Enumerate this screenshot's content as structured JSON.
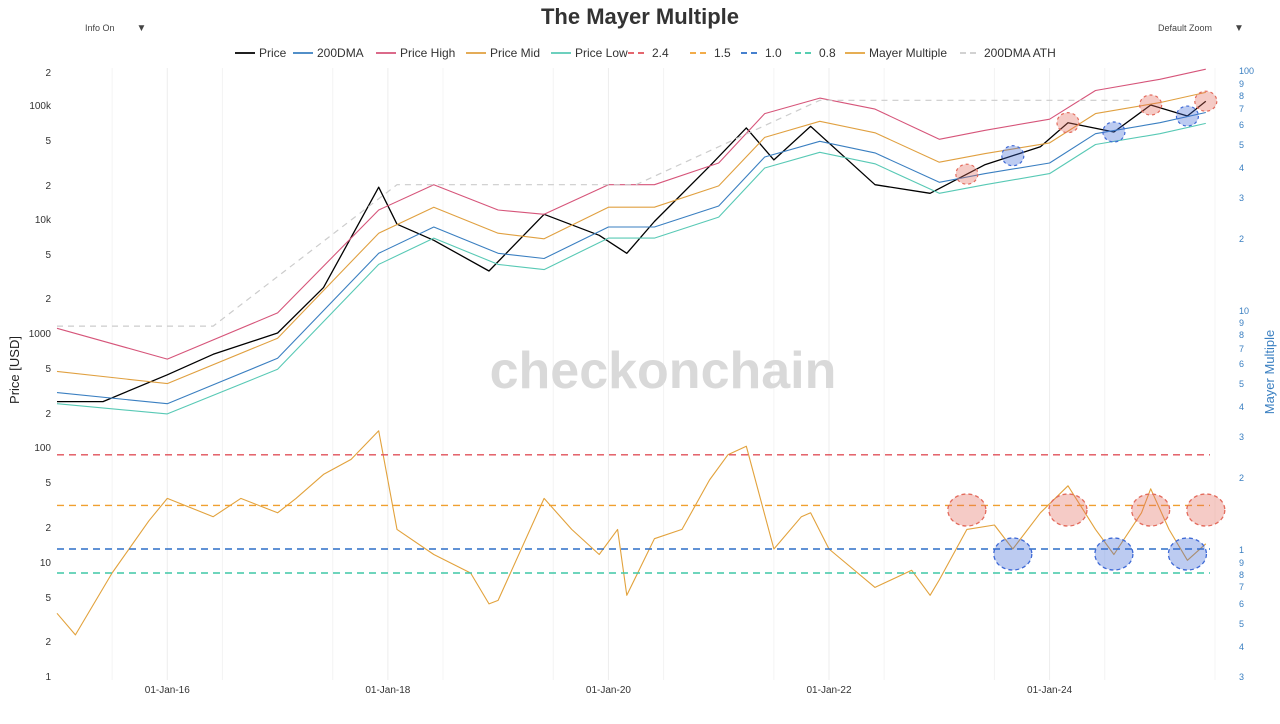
{
  "title": "The Mayer Multiple",
  "controls": {
    "info_label": "Info On",
    "info_caret": "▼",
    "zoom_label": "Default Zoom",
    "zoom_caret": "▼"
  },
  "watermark": "checkonchain",
  "chart_data": {
    "type": "line",
    "title": "The Mayer Multiple",
    "xlabel": "",
    "ylabel_left": "Price [USD]",
    "ylabel_right": "Mayer Multiple",
    "y_scale": "log",
    "x_ticks": [
      "01-Jan-16",
      "01-Jan-18",
      "01-Jan-20",
      "01-Jan-22",
      "01-Jan-24"
    ],
    "left_ticks_top": [
      "2",
      "100k",
      "5",
      "2",
      "10k",
      "5",
      "2",
      "1000",
      "5",
      "2"
    ],
    "left_ticks_bottom": [
      "100",
      "5",
      "2",
      "10",
      "5",
      "2",
      "1"
    ],
    "right_ticks_top": [
      "100",
      "9",
      "8",
      "7",
      "6",
      "5",
      "4",
      "3",
      "2"
    ],
    "right_ticks_bottom": [
      "10",
      "9",
      "8",
      "7",
      "6",
      "5",
      "4",
      "3",
      "2",
      "1",
      "9",
      "8",
      "7",
      "6",
      "5",
      "4",
      "3"
    ],
    "legend": [
      {
        "name": "Price",
        "color": "#000000",
        "dash": "solid"
      },
      {
        "name": "200DMA",
        "color": "#3a7fc1",
        "dash": "solid"
      },
      {
        "name": "Price High",
        "color": "#d6557a",
        "dash": "solid"
      },
      {
        "name": "Price Mid",
        "color": "#e0a040",
        "dash": "solid"
      },
      {
        "name": "Price Low",
        "color": "#58c9b5",
        "dash": "solid"
      },
      {
        "name": "2.4",
        "color": "#e0505a",
        "dash": "dash"
      },
      {
        "name": "1.5",
        "color": "#f0a030",
        "dash": "dash"
      },
      {
        "name": "1.0",
        "color": "#2d6fc7",
        "dash": "dash"
      },
      {
        "name": "0.8",
        "color": "#3fc7a6",
        "dash": "dash"
      },
      {
        "name": "Mayer Multiple",
        "color": "#e2a23c",
        "dash": "solid"
      },
      {
        "name": "200DMA ATH",
        "color": "#cccccc",
        "dash": "dash"
      }
    ],
    "series": [
      {
        "name": "Price",
        "unit": "USD",
        "x": [
          "2015-01",
          "2015-06",
          "2016-01",
          "2016-06",
          "2017-01",
          "2017-06",
          "2017-12",
          "2018-02",
          "2018-06",
          "2018-12",
          "2019-06",
          "2019-12",
          "2020-03",
          "2020-06",
          "2020-12",
          "2021-04",
          "2021-07",
          "2021-11",
          "2022-06",
          "2022-12",
          "2023-06",
          "2023-12",
          "2024-03",
          "2024-08",
          "2024-12",
          "2025-04",
          "2025-06"
        ],
        "values": [
          250,
          250,
          430,
          650,
          1000,
          2500,
          19000,
          9000,
          6500,
          3500,
          11000,
          7200,
          5000,
          9500,
          29000,
          63000,
          33000,
          65000,
          20000,
          16800,
          30000,
          43000,
          70000,
          58000,
          100000,
          80000,
          108000
        ]
      },
      {
        "name": "200DMA",
        "unit": "USD",
        "x": [
          "2015-01",
          "2016-01",
          "2017-01",
          "2017-12",
          "2018-06",
          "2019-01",
          "2019-06",
          "2020-01",
          "2020-06",
          "2021-01",
          "2021-06",
          "2021-12",
          "2022-06",
          "2023-01",
          "2023-06",
          "2024-01",
          "2024-06",
          "2025-01",
          "2025-06"
        ],
        "values": [
          300,
          240,
          600,
          5000,
          8500,
          5000,
          4500,
          8500,
          8500,
          13000,
          35000,
          48000,
          38000,
          21000,
          25000,
          31000,
          56000,
          70000,
          86000
        ]
      },
      {
        "name": "Price High",
        "unit": "USD",
        "x": [
          "2015-01",
          "2016-01",
          "2017-01",
          "2017-12",
          "2018-06",
          "2019-01",
          "2019-06",
          "2020-01",
          "2020-06",
          "2021-01",
          "2021-06",
          "2021-12",
          "2022-06",
          "2023-01",
          "2023-06",
          "2024-01",
          "2024-06",
          "2025-01",
          "2025-06"
        ],
        "values": [
          1100,
          590,
          1500,
          12000,
          20000,
          12000,
          11000,
          20000,
          20000,
          31000,
          84000,
          115000,
          92000,
          50000,
          60000,
          75000,
          134000,
          168000,
          206000
        ]
      },
      {
        "name": "Price Mid",
        "unit": "USD",
        "x": [
          "2015-01",
          "2016-01",
          "2017-01",
          "2017-12",
          "2018-06",
          "2019-01",
          "2019-06",
          "2020-01",
          "2020-06",
          "2021-01",
          "2021-06",
          "2021-12",
          "2022-06",
          "2023-01",
          "2023-06",
          "2024-01",
          "2024-06",
          "2025-01",
          "2025-06"
        ],
        "values": [
          460,
          360,
          900,
          7500,
          12700,
          7500,
          6700,
          12700,
          12700,
          19500,
          52000,
          72000,
          57000,
          31500,
          37500,
          46500,
          84000,
          105000,
          129000
        ]
      },
      {
        "name": "Price Low",
        "unit": "USD",
        "x": [
          "2015-01",
          "2016-01",
          "2017-01",
          "2017-12",
          "2018-06",
          "2019-01",
          "2019-06",
          "2020-01",
          "2020-06",
          "2021-01",
          "2021-06",
          "2021-12",
          "2022-06",
          "2023-01",
          "2023-06",
          "2024-01",
          "2024-06",
          "2025-01",
          "2025-06"
        ],
        "values": [
          240,
          195,
          480,
          4000,
          6800,
          4000,
          3600,
          6800,
          6800,
          10400,
          28000,
          38500,
          30500,
          16800,
          20000,
          25000,
          45000,
          56000,
          69000
        ]
      },
      {
        "name": "200DMA ATH",
        "unit": "USD",
        "x": [
          "2015-01",
          "2016-06",
          "2018-02",
          "2020-04",
          "2021-12",
          "2024-10"
        ],
        "values": [
          1150,
          1150,
          20000,
          20000,
          110000,
          110000
        ]
      },
      {
        "name": "Mayer Multiple",
        "unit": "ratio",
        "x": [
          "2015-01",
          "2015-03",
          "2015-07",
          "2015-11",
          "2016-01",
          "2016-06",
          "2016-09",
          "2017-01",
          "2017-03",
          "2017-06",
          "2017-09",
          "2017-12",
          "2018-02",
          "2018-06",
          "2018-10",
          "2018-12",
          "2019-01",
          "2019-06",
          "2019-09",
          "2019-12",
          "2020-02",
          "2020-03",
          "2020-06",
          "2020-09",
          "2020-12",
          "2021-02",
          "2021-04",
          "2021-07",
          "2021-10",
          "2021-11",
          "2022-01",
          "2022-06",
          "2022-10",
          "2022-12",
          "2023-01",
          "2023-04",
          "2023-07",
          "2023-09",
          "2023-12",
          "2024-03",
          "2024-06",
          "2024-08",
          "2024-11",
          "2024-12",
          "2025-02",
          "2025-04",
          "2025-06"
        ],
        "values": [
          0.55,
          0.45,
          0.8,
          1.3,
          1.6,
          1.35,
          1.6,
          1.4,
          1.6,
          2.0,
          2.3,
          3.0,
          1.2,
          0.95,
          0.8,
          0.6,
          0.62,
          1.6,
          1.2,
          0.95,
          1.2,
          0.65,
          1.1,
          1.2,
          1.9,
          2.4,
          2.6,
          1.0,
          1.35,
          1.4,
          1.0,
          0.7,
          0.82,
          0.65,
          0.75,
          1.2,
          1.25,
          1.0,
          1.4,
          1.8,
          1.2,
          0.95,
          1.4,
          1.75,
          1.2,
          0.9,
          1.05
        ]
      },
      {
        "name": "2.4",
        "unit": "ratio",
        "constant": 2.4
      },
      {
        "name": "1.5",
        "unit": "ratio",
        "constant": 1.5
      },
      {
        "name": "1.0",
        "unit": "ratio",
        "constant": 1.0
      },
      {
        "name": "0.8",
        "unit": "ratio",
        "constant": 0.8
      }
    ],
    "annotations": [
      {
        "type": "overheated-circle",
        "color": "#e36b5c",
        "x": [
          "2023-04",
          "2024-03",
          "2024-12",
          "2025-06"
        ]
      },
      {
        "type": "oversold-circle",
        "color": "#3f6ad6",
        "x": [
          "2023-09",
          "2024-08",
          "2025-04"
        ]
      }
    ],
    "grid": true,
    "legend_position": "top"
  }
}
